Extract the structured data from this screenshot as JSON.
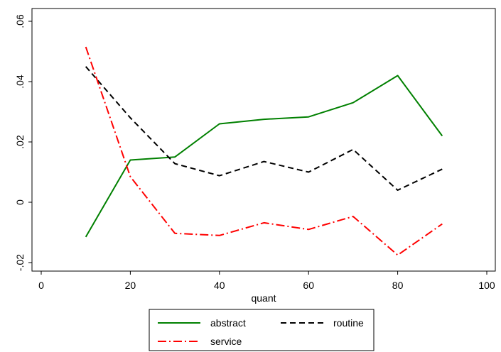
{
  "chart_data": {
    "type": "line",
    "title": "",
    "xlabel": "quant",
    "ylabel": "",
    "xlim": [
      0,
      100
    ],
    "ylim": [
      -0.02,
      0.06
    ],
    "xticks": [
      0,
      20,
      40,
      60,
      80,
      100
    ],
    "xtick_labels": [
      "0",
      "20",
      "40",
      "60",
      "80",
      "100"
    ],
    "yticks": [
      -0.02,
      0,
      0.02,
      0.04,
      0.06
    ],
    "ytick_labels": [
      "-.02",
      "0",
      ".02",
      ".04",
      ".06"
    ],
    "grid": false,
    "legend_position": "bottom",
    "x": [
      10,
      20,
      30,
      40,
      50,
      60,
      70,
      80,
      90
    ],
    "series": [
      {
        "name": "abstract",
        "color": "#008000",
        "dash": "solid",
        "values": [
          -0.0115,
          0.014,
          0.015,
          0.026,
          0.0275,
          0.0283,
          0.033,
          0.042,
          0.022
        ]
      },
      {
        "name": "routine",
        "color": "#000000",
        "dash": "dash",
        "values": [
          0.045,
          0.028,
          0.0128,
          0.0088,
          0.0135,
          0.01,
          0.0175,
          0.004,
          0.011
        ]
      },
      {
        "name": "service",
        "color": "#ff0000",
        "dash": "dashdot",
        "values": [
          0.0515,
          0.0085,
          -0.0103,
          -0.011,
          -0.0068,
          -0.009,
          -0.0047,
          -0.0175,
          -0.0072
        ]
      }
    ]
  }
}
